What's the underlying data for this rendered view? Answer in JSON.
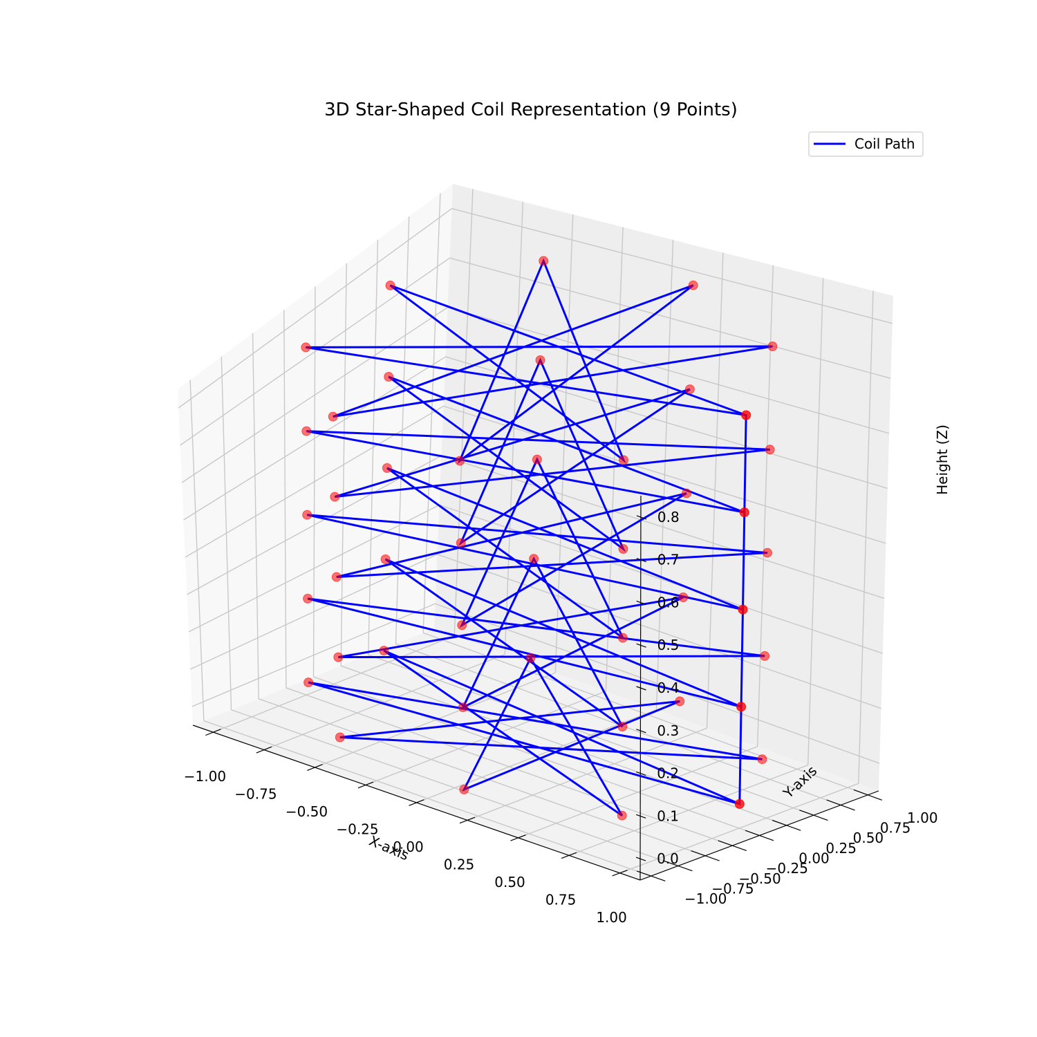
{
  "chart_data": {
    "type": "line-3d",
    "title": "3D Star-Shaped Coil Representation (9 Points)",
    "xlabel": "X-axis",
    "ylabel": "Y-axis",
    "zlabel": "Height (Z)",
    "xlim": [
      -1.1,
      1.1
    ],
    "ylim": [
      -1.1,
      1.1
    ],
    "zlim": [
      -0.05,
      0.85
    ],
    "x_ticks": [
      "−1.00",
      "−0.75",
      "−0.50",
      "−0.25",
      "0.00",
      "0.25",
      "0.50",
      "0.75",
      "1.00"
    ],
    "y_ticks": [
      "−1.00",
      "−0.75",
      "−0.50",
      "−0.25",
      "0.00",
      "0.25",
      "0.50",
      "0.75",
      "1.00"
    ],
    "z_ticks": [
      "0.0",
      "0.1",
      "0.2",
      "0.3",
      "0.4",
      "0.5",
      "0.6",
      "0.7",
      "0.8"
    ],
    "grid": true,
    "legend_position": "top-right",
    "series": [
      {
        "name": "Coil Path",
        "color": "#0000ff",
        "marker_color": "#ff0000",
        "star_points": 9,
        "star_step": 4,
        "radius": 1.0,
        "turns": 5,
        "z_start": 0.0,
        "z_step": 0.2
      }
    ]
  }
}
